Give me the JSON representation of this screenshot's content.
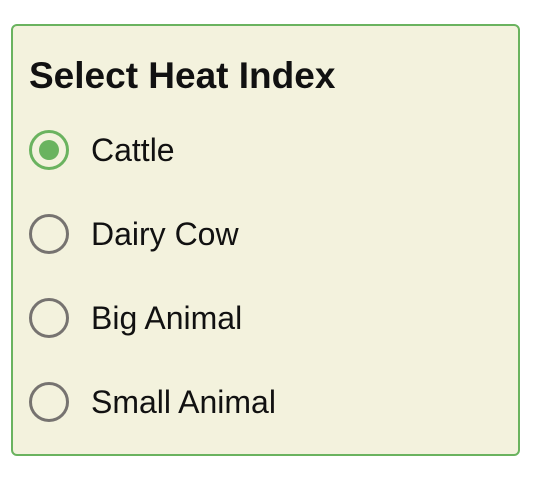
{
  "form": {
    "title": "Select Heat Index",
    "options": [
      {
        "label": "Cattle",
        "selected": true
      },
      {
        "label": "Dairy Cow",
        "selected": false
      },
      {
        "label": "Big Animal",
        "selected": false
      },
      {
        "label": "Small Animal",
        "selected": false
      }
    ],
    "colors": {
      "accent": "#6ab35f",
      "panel_background": "#f3f2dd",
      "radio_unselected": "#767370",
      "text": "#111111"
    }
  }
}
